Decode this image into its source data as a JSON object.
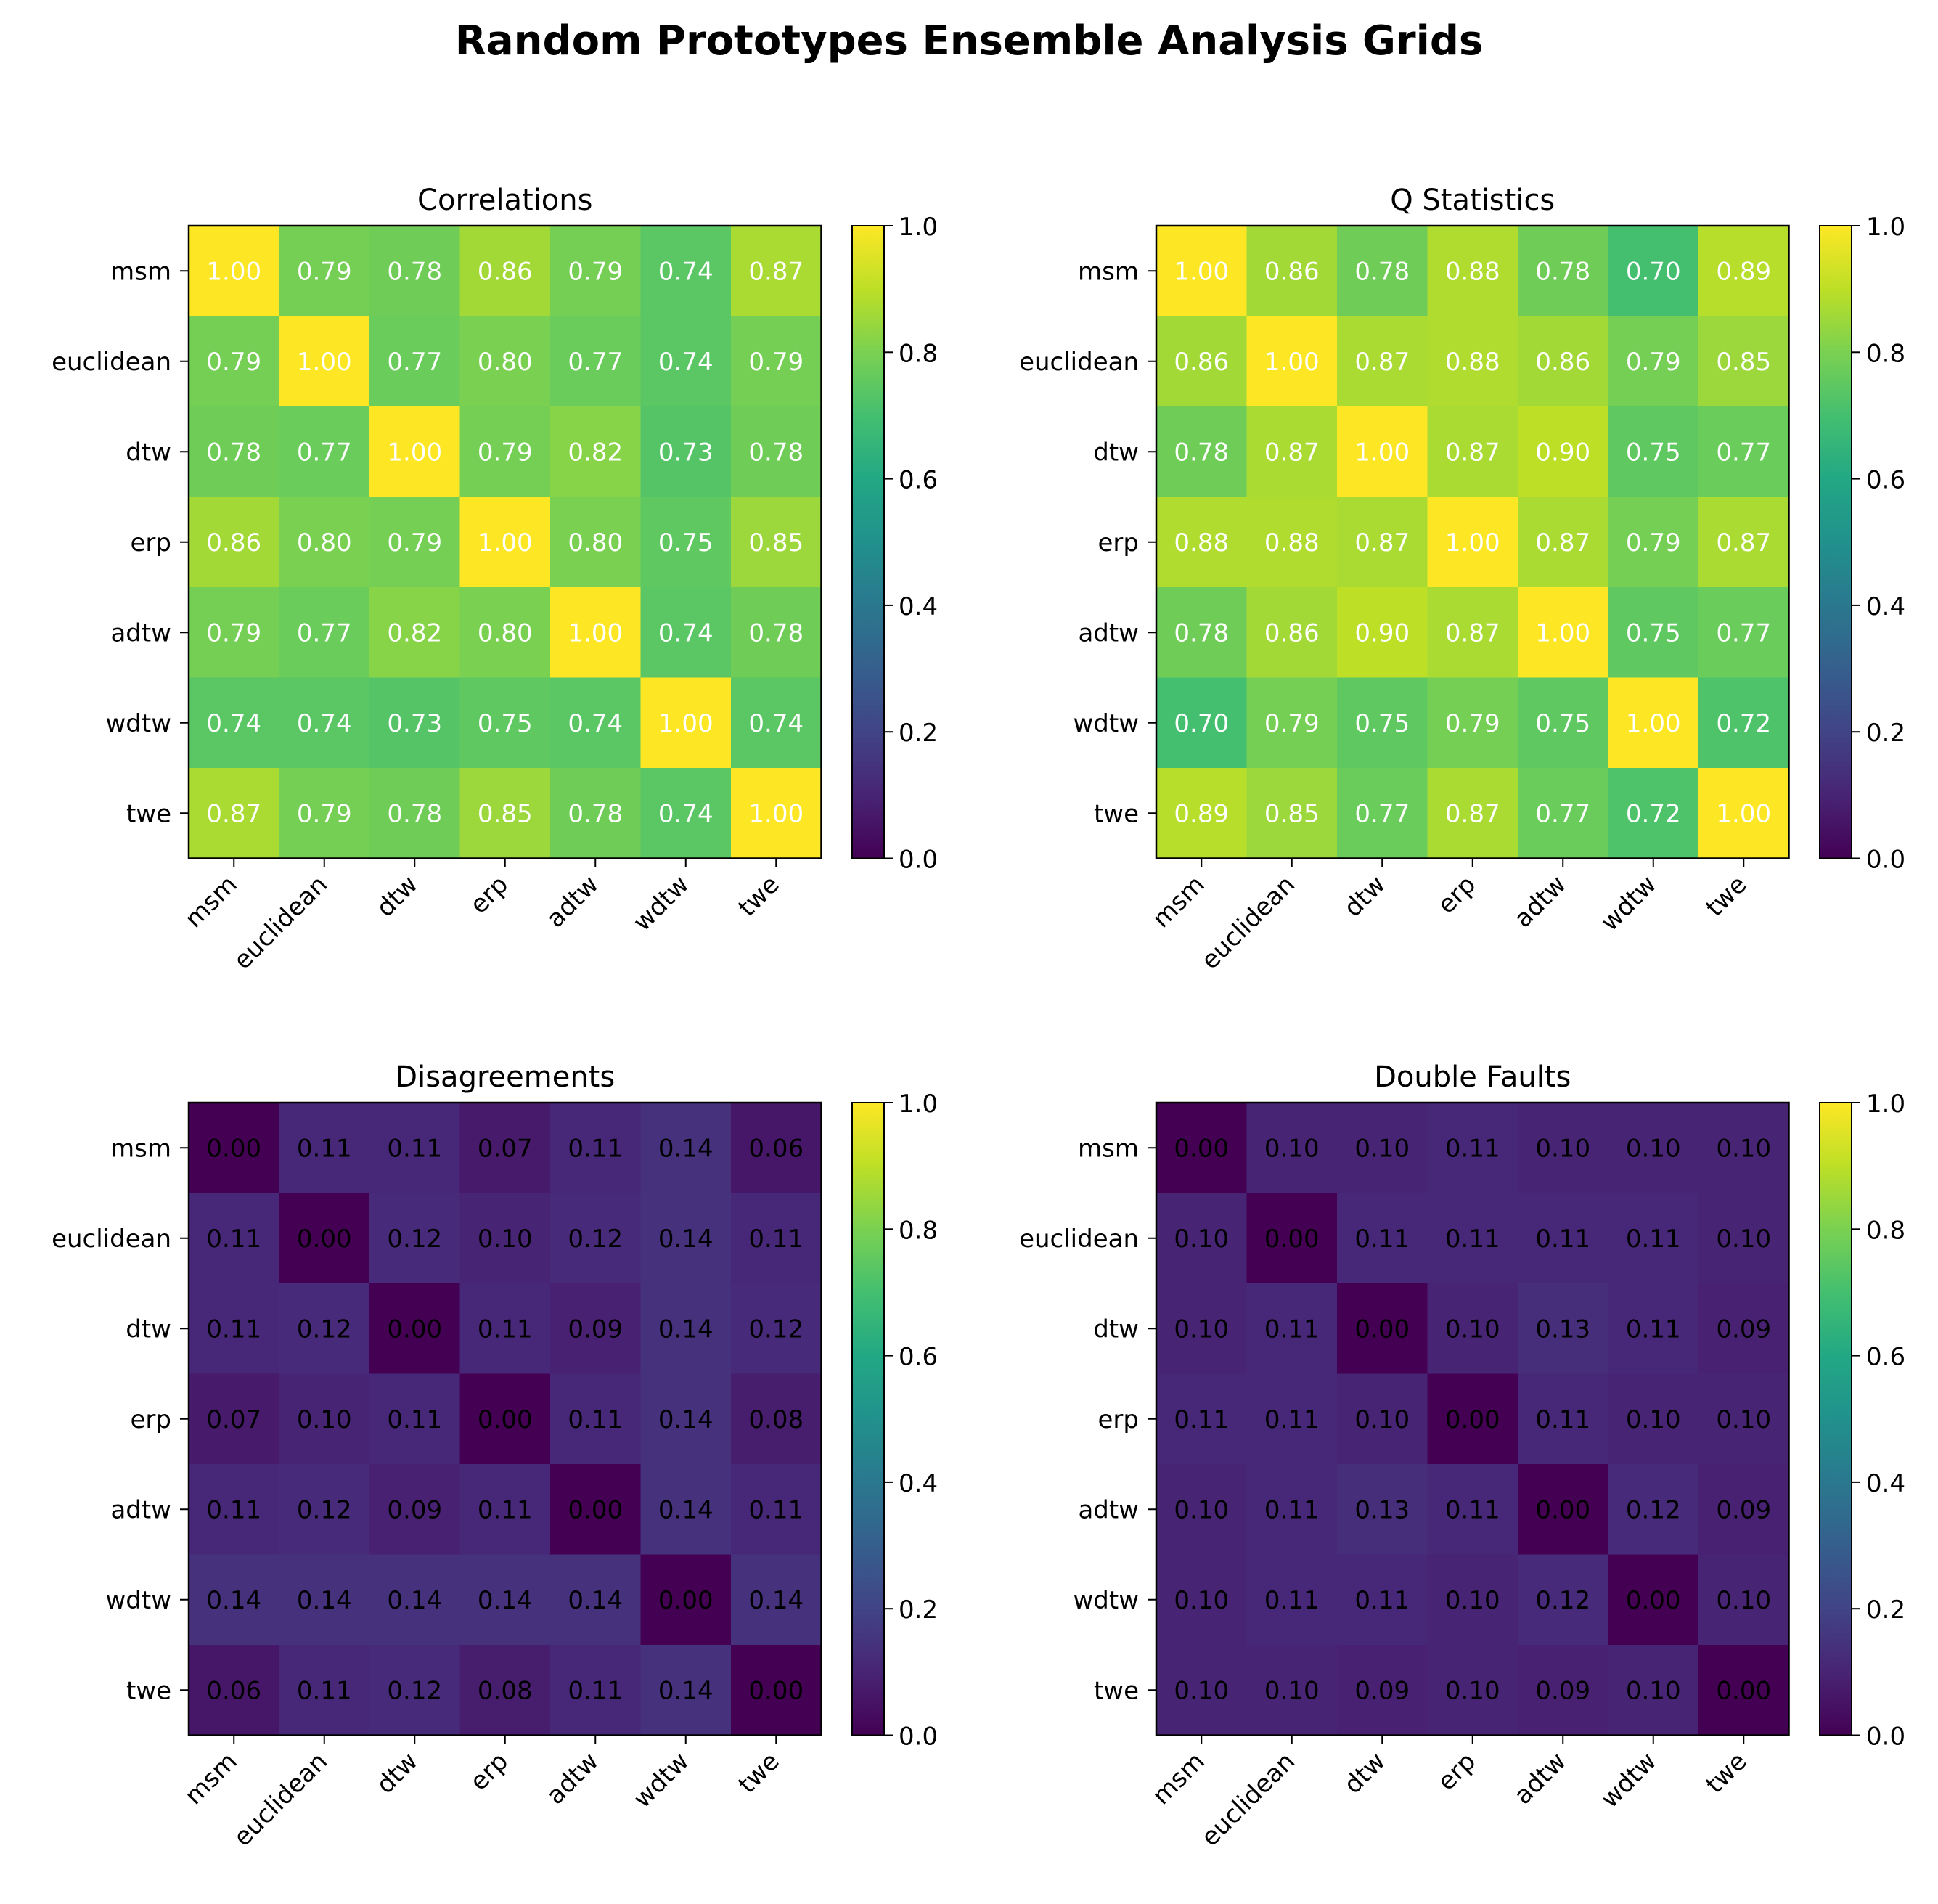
{
  "figure": {
    "title": "Random Prototypes Ensemble Analysis Grids"
  },
  "chart_data": [
    {
      "type": "heatmap",
      "title": "Correlations",
      "labels": [
        "msm",
        "euclidean",
        "dtw",
        "erp",
        "adtw",
        "wdtw",
        "twe"
      ],
      "values": [
        [
          1.0,
          0.79,
          0.78,
          0.86,
          0.79,
          0.74,
          0.87
        ],
        [
          0.79,
          1.0,
          0.77,
          0.8,
          0.77,
          0.74,
          0.79
        ],
        [
          0.78,
          0.77,
          1.0,
          0.79,
          0.82,
          0.73,
          0.78
        ],
        [
          0.86,
          0.8,
          0.79,
          1.0,
          0.8,
          0.75,
          0.85
        ],
        [
          0.79,
          0.77,
          0.82,
          0.8,
          1.0,
          0.74,
          0.78
        ],
        [
          0.74,
          0.74,
          0.73,
          0.75,
          0.74,
          1.0,
          0.74
        ],
        [
          0.87,
          0.79,
          0.78,
          0.85,
          0.78,
          0.74,
          1.0
        ]
      ],
      "vmin": 0,
      "vmax": 1,
      "colorbar_ticks": [
        "0.0",
        "0.2",
        "0.4",
        "0.6",
        "0.8",
        "1.0"
      ],
      "colormap": "viridis",
      "text_color": "#ffffff"
    },
    {
      "type": "heatmap",
      "title": "Q Statistics",
      "labels": [
        "msm",
        "euclidean",
        "dtw",
        "erp",
        "adtw",
        "wdtw",
        "twe"
      ],
      "values": [
        [
          1.0,
          0.86,
          0.78,
          0.88,
          0.78,
          0.7,
          0.89
        ],
        [
          0.86,
          1.0,
          0.87,
          0.88,
          0.86,
          0.79,
          0.85
        ],
        [
          0.78,
          0.87,
          1.0,
          0.87,
          0.9,
          0.75,
          0.77
        ],
        [
          0.88,
          0.88,
          0.87,
          1.0,
          0.87,
          0.79,
          0.87
        ],
        [
          0.78,
          0.86,
          0.9,
          0.87,
          1.0,
          0.75,
          0.77
        ],
        [
          0.7,
          0.79,
          0.75,
          0.79,
          0.75,
          1.0,
          0.72
        ],
        [
          0.89,
          0.85,
          0.77,
          0.87,
          0.77,
          0.72,
          1.0
        ]
      ],
      "vmin": 0,
      "vmax": 1,
      "colorbar_ticks": [
        "0.0",
        "0.2",
        "0.4",
        "0.6",
        "0.8",
        "1.0"
      ],
      "colormap": "viridis",
      "text_color": "#ffffff"
    },
    {
      "type": "heatmap",
      "title": "Disagreements",
      "labels": [
        "msm",
        "euclidean",
        "dtw",
        "erp",
        "adtw",
        "wdtw",
        "twe"
      ],
      "values": [
        [
          0.0,
          0.11,
          0.11,
          0.07,
          0.11,
          0.14,
          0.06
        ],
        [
          0.11,
          0.0,
          0.12,
          0.1,
          0.12,
          0.14,
          0.11
        ],
        [
          0.11,
          0.12,
          0.0,
          0.11,
          0.09,
          0.14,
          0.12
        ],
        [
          0.07,
          0.1,
          0.11,
          0.0,
          0.11,
          0.14,
          0.08
        ],
        [
          0.11,
          0.12,
          0.09,
          0.11,
          0.0,
          0.14,
          0.11
        ],
        [
          0.14,
          0.14,
          0.14,
          0.14,
          0.14,
          0.0,
          0.14
        ],
        [
          0.06,
          0.11,
          0.12,
          0.08,
          0.11,
          0.14,
          0.0
        ]
      ],
      "vmin": 0,
      "vmax": 1,
      "colorbar_ticks": [
        "0.0",
        "0.2",
        "0.4",
        "0.6",
        "0.8",
        "1.0"
      ],
      "colormap": "viridis",
      "text_color": "#000000"
    },
    {
      "type": "heatmap",
      "title": "Double Faults",
      "labels": [
        "msm",
        "euclidean",
        "dtw",
        "erp",
        "adtw",
        "wdtw",
        "twe"
      ],
      "values": [
        [
          0.0,
          0.1,
          0.1,
          0.11,
          0.1,
          0.1,
          0.1
        ],
        [
          0.1,
          0.0,
          0.11,
          0.11,
          0.11,
          0.11,
          0.1
        ],
        [
          0.1,
          0.11,
          0.0,
          0.1,
          0.13,
          0.11,
          0.09
        ],
        [
          0.11,
          0.11,
          0.1,
          0.0,
          0.11,
          0.1,
          0.1
        ],
        [
          0.1,
          0.11,
          0.13,
          0.11,
          0.0,
          0.12,
          0.09
        ],
        [
          0.1,
          0.11,
          0.11,
          0.1,
          0.12,
          0.0,
          0.1
        ],
        [
          0.1,
          0.1,
          0.09,
          0.1,
          0.09,
          0.1,
          0.0
        ]
      ],
      "vmin": 0,
      "vmax": 1,
      "colorbar_ticks": [
        "0.0",
        "0.2",
        "0.4",
        "0.6",
        "0.8",
        "1.0"
      ],
      "colormap": "viridis",
      "text_color": "#000000"
    }
  ]
}
